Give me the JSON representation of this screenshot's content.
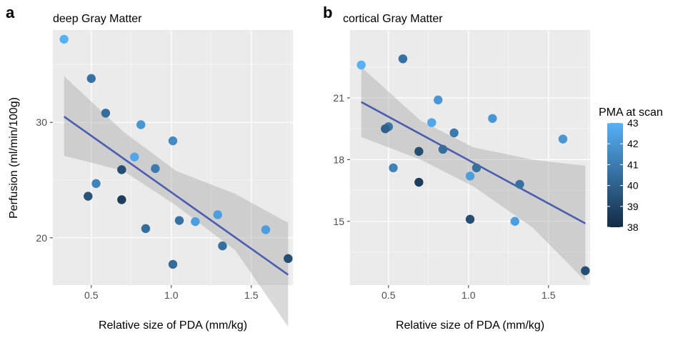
{
  "figure": {
    "y_label": "Perfusion (ml/min/100g)"
  },
  "legend": {
    "title": "PMA at scan",
    "ticks": [
      43,
      42,
      41,
      40,
      39,
      38
    ],
    "range": [
      38,
      43
    ],
    "color_low": "#132B43",
    "color_high": "#56B1F7"
  },
  "theme": {
    "panel_bg": "#EBEBEB",
    "grid_major": "#FFFFFF",
    "line_color": "#4A5DAE",
    "band_color": "#A3A3A3"
  },
  "chart_data": [
    {
      "type": "scatter",
      "panel_letter": "a",
      "title": "deep Gray Matter",
      "xlabel": "Relative size of PDA (mm/kg)",
      "ylabel": "Perfusion (ml/min/100g)",
      "xlim": [
        0.26,
        1.76
      ],
      "ylim": [
        15.9,
        38.0
      ],
      "x_ticks": [
        0.5,
        1.0,
        1.5
      ],
      "x_tick_labels": [
        "0.5",
        "1.0",
        "1.5"
      ],
      "y_ticks": [
        20,
        30
      ],
      "y_tick_labels": [
        "20",
        "30"
      ],
      "color_scale": "PMA at scan",
      "points": [
        {
          "x": 0.33,
          "y": 37.2,
          "pma": 43.0
        },
        {
          "x": 0.5,
          "y": 33.8,
          "pma": 40.6
        },
        {
          "x": 0.59,
          "y": 30.8,
          "pma": 40.5
        },
        {
          "x": 0.81,
          "y": 29.8,
          "pma": 42.0
        },
        {
          "x": 1.01,
          "y": 28.4,
          "pma": 41.6
        },
        {
          "x": 0.77,
          "y": 27.0,
          "pma": 42.6
        },
        {
          "x": 0.9,
          "y": 26.0,
          "pma": 41.0
        },
        {
          "x": 0.69,
          "y": 25.9,
          "pma": 39.3
        },
        {
          "x": 0.53,
          "y": 24.7,
          "pma": 41.3
        },
        {
          "x": 0.48,
          "y": 23.6,
          "pma": 39.5
        },
        {
          "x": 0.69,
          "y": 23.3,
          "pma": 38.7
        },
        {
          "x": 1.29,
          "y": 22.0,
          "pma": 42.3
        },
        {
          "x": 1.05,
          "y": 21.5,
          "pma": 40.6
        },
        {
          "x": 1.15,
          "y": 21.4,
          "pma": 42.3
        },
        {
          "x": 0.84,
          "y": 20.8,
          "pma": 40.5
        },
        {
          "x": 1.59,
          "y": 20.7,
          "pma": 42.3
        },
        {
          "x": 1.32,
          "y": 19.3,
          "pma": 40.6
        },
        {
          "x": 1.73,
          "y": 18.2,
          "pma": 39.3
        },
        {
          "x": 1.01,
          "y": 17.7,
          "pma": 40.4
        }
      ],
      "fit_line": {
        "x": [
          0.33,
          1.73
        ],
        "y": [
          30.5,
          16.8
        ]
      },
      "confidence_band": {
        "x": [
          0.33,
          0.7,
          1.03,
          1.4,
          1.73
        ],
        "lower": [
          27.1,
          25.8,
          22.8,
          18.9,
          12.3
        ],
        "upper": [
          34.0,
          29.2,
          25.8,
          23.8,
          21.3
        ]
      }
    },
    {
      "type": "scatter",
      "panel_letter": "b",
      "title": "cortical Gray Matter",
      "xlabel": "Relative size of PDA (mm/kg)",
      "ylabel": "",
      "xlim": [
        0.26,
        1.76
      ],
      "ylim": [
        11.9,
        24.3
      ],
      "x_ticks": [
        0.5,
        1.0,
        1.5
      ],
      "x_tick_labels": [
        "0.5",
        "1.0",
        "1.5"
      ],
      "y_ticks": [
        15,
        18,
        21
      ],
      "y_tick_labels": [
        "15",
        "18",
        "21"
      ],
      "color_scale": "PMA at scan",
      "points": [
        {
          "x": 0.33,
          "y": 22.6,
          "pma": 43.0
        },
        {
          "x": 0.59,
          "y": 22.9,
          "pma": 40.6
        },
        {
          "x": 0.81,
          "y": 20.9,
          "pma": 42.0
        },
        {
          "x": 1.15,
          "y": 20.0,
          "pma": 42.0
        },
        {
          "x": 0.77,
          "y": 19.8,
          "pma": 42.6
        },
        {
          "x": 0.5,
          "y": 19.6,
          "pma": 40.8
        },
        {
          "x": 0.48,
          "y": 19.5,
          "pma": 40.0
        },
        {
          "x": 0.91,
          "y": 19.3,
          "pma": 41.0
        },
        {
          "x": 1.59,
          "y": 19.0,
          "pma": 42.0
        },
        {
          "x": 0.84,
          "y": 18.5,
          "pma": 40.5
        },
        {
          "x": 0.69,
          "y": 18.4,
          "pma": 39.3
        },
        {
          "x": 1.05,
          "y": 17.6,
          "pma": 40.6
        },
        {
          "x": 0.53,
          "y": 17.6,
          "pma": 41.3
        },
        {
          "x": 1.01,
          "y": 17.2,
          "pma": 42.3
        },
        {
          "x": 0.69,
          "y": 16.9,
          "pma": 38.7
        },
        {
          "x": 1.32,
          "y": 16.8,
          "pma": 40.6
        },
        {
          "x": 1.01,
          "y": 15.1,
          "pma": 39.3
        },
        {
          "x": 1.29,
          "y": 15.0,
          "pma": 42.3
        },
        {
          "x": 1.73,
          "y": 12.6,
          "pma": 39.3
        }
      ],
      "fit_line": {
        "x": [
          0.33,
          1.73
        ],
        "y": [
          20.8,
          14.9
        ]
      },
      "confidence_band": {
        "x": [
          0.33,
          0.7,
          1.03,
          1.4,
          1.73
        ],
        "lower": [
          19.1,
          18.0,
          16.7,
          14.7,
          12.1
        ],
        "upper": [
          22.5,
          19.9,
          18.6,
          18.0,
          17.7
        ]
      }
    }
  ]
}
